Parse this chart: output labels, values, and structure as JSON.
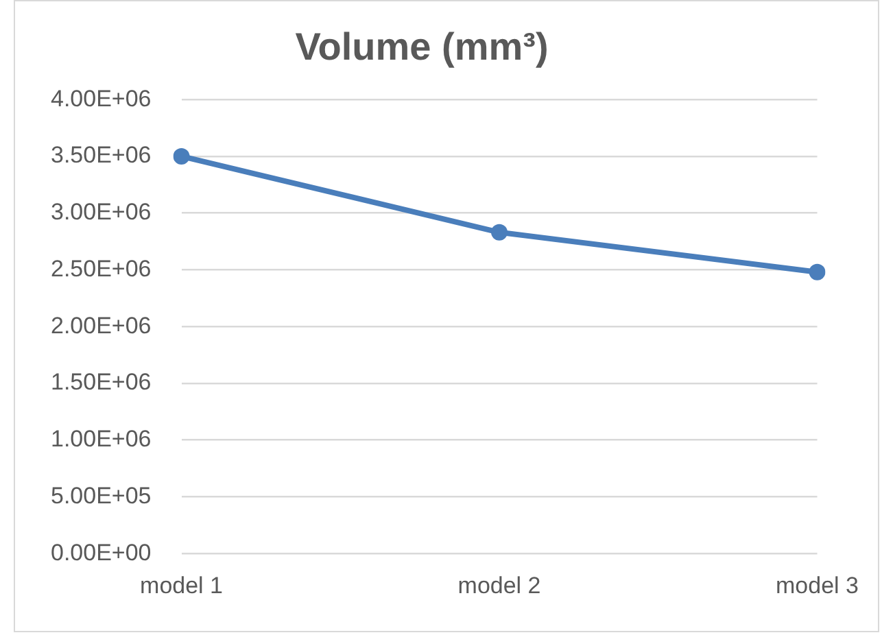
{
  "chart_data": {
    "type": "line",
    "title": "Volume (mm³)",
    "categories": [
      "model 1",
      "model 2",
      "model 3"
    ],
    "series": [
      {
        "color": "#4a7ebb",
        "values": [
          3500000,
          2830000,
          2480000
        ]
      }
    ],
    "ylim": [
      0,
      4000000
    ],
    "yticks": [
      {
        "value": 0,
        "label": "0.00E+00"
      },
      {
        "value": 500000,
        "label": "5.00E+05"
      },
      {
        "value": 1000000,
        "label": "1.00E+06"
      },
      {
        "value": 1500000,
        "label": "1.50E+06"
      },
      {
        "value": 2000000,
        "label": "2.00E+06"
      },
      {
        "value": 2500000,
        "label": "2.50E+06"
      },
      {
        "value": 3000000,
        "label": "3.00E+06"
      },
      {
        "value": 3500000,
        "label": "3.50E+06"
      },
      {
        "value": 4000000,
        "label": "4.00E+06"
      }
    ],
    "grid": "y",
    "legend": false,
    "marker": "circle",
    "line_style": "solid"
  }
}
